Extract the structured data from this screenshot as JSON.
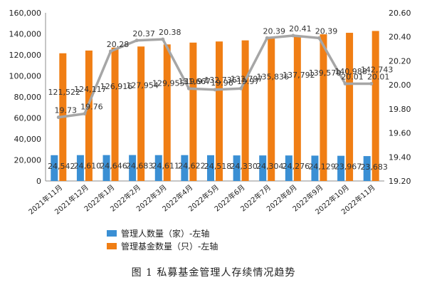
{
  "caption": "图 1 私募基金管理人存续情况趋势",
  "chart_data": {
    "type": "bar",
    "categories": [
      "2021年11月",
      "2021年12月",
      "2022年1月",
      "2022年2月",
      "2022年3月",
      "2022年4月",
      "2022年5月",
      "2022年6月",
      "2022年7月",
      "2022年8月",
      "2022年9月",
      "2022年10月",
      "2022年11月"
    ],
    "series": [
      {
        "name": "管理人数量（家）-左轴",
        "type": "bar",
        "axis": "left",
        "color": "#3a8fd4",
        "values": [
          24542,
          24610,
          24646,
          24683,
          24611,
          24622,
          24518,
          24330,
          24304,
          24276,
          24129,
          23967,
          23683
        ]
      },
      {
        "name": "管理基金数量（只）-左轴",
        "type": "bar",
        "axis": "left",
        "color": "#f07e14",
        "values": [
          121522,
          124117,
          126916,
          127954,
          129955,
          131667,
          132736,
          133797,
          135836,
          137792,
          139570,
          140988,
          142743
        ]
      },
      {
        "type": "line",
        "axis": "right",
        "color": "#a6a6a6",
        "values": [
          19.73,
          19.76,
          20.28,
          20.37,
          20.38,
          19.97,
          19.96,
          19.97,
          20.39,
          20.41,
          20.39,
          20.01,
          20.01
        ]
      }
    ],
    "left_ticks": [
      "0",
      "20,000",
      "40,000",
      "60,000",
      "80,000",
      "100,000",
      "120,000",
      "140,000",
      "160,000"
    ],
    "right_ticks": [
      "19.20",
      "19.40",
      "19.60",
      "19.80",
      "20.00",
      "20.20",
      "20.40",
      "20.60"
    ],
    "ylim": [
      0,
      160000
    ],
    "y2lim": [
      19.2,
      20.6
    ],
    "bar_labels_1": [
      "24,542",
      "24,610",
      "24,646",
      "24,683",
      "24,611",
      "24,622",
      "24,518",
      "24,330",
      "24,304",
      "24,276",
      "24,129",
      "23,967",
      "23,683"
    ],
    "bar_labels_2": [
      "121,522",
      "124,117",
      "126,916",
      "127,954",
      "129,955",
      "131,667",
      "132,736",
      "133,797",
      "135,836",
      "137,792",
      "139,570",
      "140,988",
      "142,743"
    ],
    "line_labels": [
      "19.73",
      "19.76",
      "20.28",
      "20.37",
      "20.38",
      "19.97",
      "19.96",
      "19.97",
      "20.39",
      "20.41",
      "20.39",
      "20.01",
      "20.01"
    ],
    "legend_position": "bottom-center",
    "grid": false
  }
}
